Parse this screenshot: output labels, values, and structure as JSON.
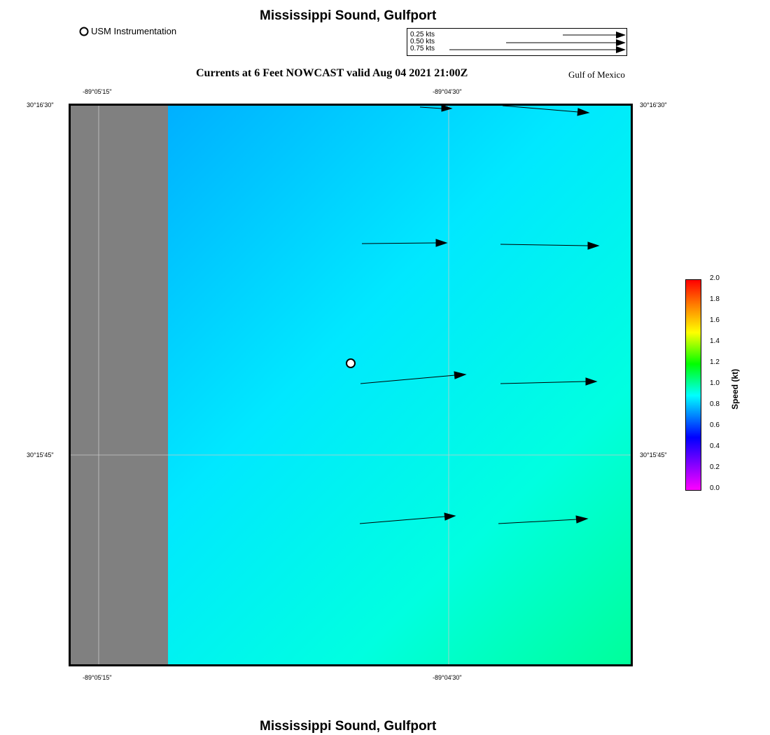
{
  "header": {
    "title": "Mississippi Sound, Gulfport",
    "subtitle": "Currents at 6 Feet NOWCAST valid Aug 04 2021 21:00Z",
    "region": "Gulf of Mexico"
  },
  "footer": {
    "title": "Mississippi Sound, Gulfport"
  },
  "legend": {
    "station_label": "USM Instrumentation"
  },
  "vector_scale": {
    "entries": [
      {
        "label": "0.25 kts",
        "value": 0.25
      },
      {
        "label": "0.50 kts",
        "value": 0.5
      },
      {
        "label": "0.75 kts",
        "value": 0.75
      }
    ]
  },
  "axes": {
    "lon_ticks": [
      {
        "label": "-89°05'15\"",
        "value": -89.0875
      },
      {
        "label": "-89°04'30\"",
        "value": -89.075
      }
    ],
    "lat_ticks": [
      {
        "label": "30°16'30\"",
        "value": 30.275
      },
      {
        "label": "30°15'45\"",
        "value": 30.2625
      }
    ]
  },
  "colorbar": {
    "label": "Speed (kt)",
    "min": 0.0,
    "max": 2.0,
    "ticks": [
      "0.0",
      "0.2",
      "0.4",
      "0.6",
      "0.8",
      "1.0",
      "1.2",
      "1.4",
      "1.6",
      "1.8",
      "2.0"
    ]
  },
  "colors": {
    "land": "#808080",
    "water_slow": "#00a2ff",
    "water_fast": "#00ff9a"
  }
}
